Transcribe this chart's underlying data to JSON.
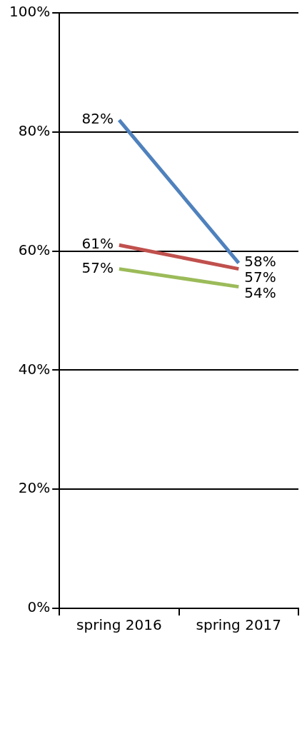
{
  "chart_data": {
    "type": "line",
    "categories": [
      "spring 2016",
      "spring 2017"
    ],
    "series": [
      {
        "color": "#4f81bd",
        "values": [
          82,
          58
        ],
        "value_labels": [
          "82%",
          "58%"
        ]
      },
      {
        "color": "#c0504d",
        "values": [
          61,
          57
        ],
        "value_labels": [
          "61%",
          "57%"
        ]
      },
      {
        "color": "#9bbb59",
        "values": [
          57,
          54
        ],
        "value_labels": [
          "57%",
          "54%"
        ]
      }
    ],
    "ylim": [
      0,
      100
    ],
    "yticks": [
      {
        "value": 0,
        "label": "0%"
      },
      {
        "value": 20,
        "label": "20%"
      },
      {
        "value": 40,
        "label": "40%"
      },
      {
        "value": 60,
        "label": "60%"
      },
      {
        "value": 80,
        "label": "80%"
      },
      {
        "value": 100,
        "label": "100%"
      }
    ],
    "grid": "y",
    "legend": false,
    "marker": "none",
    "line_style": "solid"
  }
}
